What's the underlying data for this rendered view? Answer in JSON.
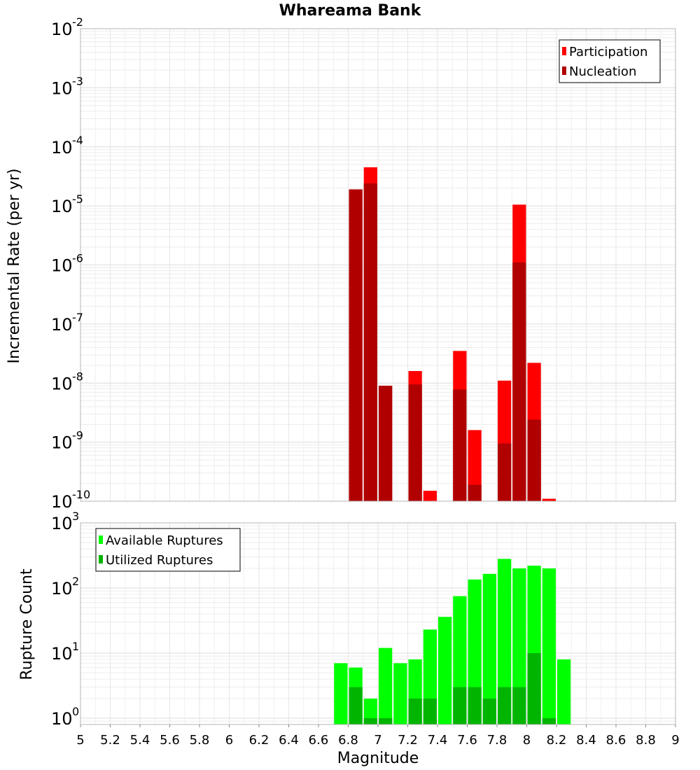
{
  "chart_data": [
    {
      "type": "bar",
      "title": "Whareama Bank",
      "ylabel": "Incremental Rate (per yr)",
      "xlim": [
        5,
        9
      ],
      "ylim": [
        1e-10,
        0.01
      ],
      "y_scale": "log",
      "y_ticks": [
        {
          "base": "10",
          "exp": "-10"
        },
        {
          "base": "10",
          "exp": "-9"
        },
        {
          "base": "10",
          "exp": "-8"
        },
        {
          "base": "10",
          "exp": "-7"
        },
        {
          "base": "10",
          "exp": "-6"
        },
        {
          "base": "10",
          "exp": "-5"
        },
        {
          "base": "10",
          "exp": "-4"
        },
        {
          "base": "10",
          "exp": "-3"
        },
        {
          "base": "10",
          "exp": "-2"
        }
      ],
      "grid": true,
      "legend_position": "top-right",
      "bin_width": 0.1,
      "series": [
        {
          "name": "Participation",
          "color": "#ff0000",
          "points": [
            {
              "x": 6.85,
              "y": 1.9e-05
            },
            {
              "x": 6.95,
              "y": 4.5e-05
            },
            {
              "x": 7.05,
              "y": 9e-09
            },
            {
              "x": 7.25,
              "y": 1.6e-08
            },
            {
              "x": 7.35,
              "y": 1.5e-10
            },
            {
              "x": 7.55,
              "y": 3.5e-08
            },
            {
              "x": 7.65,
              "y": 1.6e-09
            },
            {
              "x": 7.85,
              "y": 1.1e-08
            },
            {
              "x": 7.95,
              "y": 1.05e-05
            },
            {
              "x": 8.05,
              "y": 2.2e-08
            },
            {
              "x": 8.15,
              "y": 1.1e-10
            }
          ]
        },
        {
          "name": "Nucleation",
          "color": "#b00000",
          "points": [
            {
              "x": 6.85,
              "y": 1.9e-05
            },
            {
              "x": 6.95,
              "y": 2.4e-05
            },
            {
              "x": 7.05,
              "y": 9e-09
            },
            {
              "x": 7.25,
              "y": 9.5e-09
            },
            {
              "x": 7.55,
              "y": 7.8e-09
            },
            {
              "x": 7.65,
              "y": 1.9e-10
            },
            {
              "x": 7.85,
              "y": 9.5e-10
            },
            {
              "x": 7.95,
              "y": 1.1e-06
            },
            {
              "x": 8.05,
              "y": 2.4e-09
            }
          ]
        }
      ]
    },
    {
      "type": "bar",
      "xlabel": "Magnitude",
      "ylabel": "Rupture Count",
      "xlim": [
        5,
        9
      ],
      "x_ticks": [
        "5",
        "5.2",
        "5.4",
        "5.6",
        "5.8",
        "6",
        "6.2",
        "6.4",
        "6.6",
        "6.8",
        "7",
        "7.2",
        "7.4",
        "7.6",
        "7.8",
        "8",
        "8.2",
        "8.4",
        "8.6",
        "8.8",
        "9"
      ],
      "ylim": [
        0.8,
        1000
      ],
      "y_scale": "log",
      "y_ticks": [
        {
          "base": "10",
          "exp": "0"
        },
        {
          "base": "10",
          "exp": "1"
        },
        {
          "base": "10",
          "exp": "2"
        },
        {
          "base": "10",
          "exp": "3"
        }
      ],
      "grid": true,
      "legend_position": "top-left",
      "bin_width": 0.1,
      "series": [
        {
          "name": "Available Ruptures",
          "color": "#00ff00",
          "points": [
            {
              "x": 6.75,
              "y": 7
            },
            {
              "x": 6.85,
              "y": 6
            },
            {
              "x": 6.95,
              "y": 2
            },
            {
              "x": 7.05,
              "y": 12
            },
            {
              "x": 7.15,
              "y": 7
            },
            {
              "x": 7.25,
              "y": 8
            },
            {
              "x": 7.35,
              "y": 23
            },
            {
              "x": 7.45,
              "y": 36
            },
            {
              "x": 7.55,
              "y": 75
            },
            {
              "x": 7.65,
              "y": 135
            },
            {
              "x": 7.75,
              "y": 165
            },
            {
              "x": 7.85,
              "y": 280
            },
            {
              "x": 7.95,
              "y": 200
            },
            {
              "x": 8.05,
              "y": 220
            },
            {
              "x": 8.15,
              "y": 200
            },
            {
              "x": 8.25,
              "y": 8
            }
          ]
        },
        {
          "name": "Utilized Ruptures",
          "color": "#00b400",
          "points": [
            {
              "x": 6.85,
              "y": 3
            },
            {
              "x": 6.95,
              "y": 1
            },
            {
              "x": 7.05,
              "y": 1
            },
            {
              "x": 7.25,
              "y": 2
            },
            {
              "x": 7.35,
              "y": 2
            },
            {
              "x": 7.55,
              "y": 3
            },
            {
              "x": 7.65,
              "y": 3
            },
            {
              "x": 7.75,
              "y": 2
            },
            {
              "x": 7.85,
              "y": 3
            },
            {
              "x": 7.95,
              "y": 3
            },
            {
              "x": 8.05,
              "y": 10
            },
            {
              "x": 8.15,
              "y": 1
            }
          ]
        }
      ]
    }
  ]
}
